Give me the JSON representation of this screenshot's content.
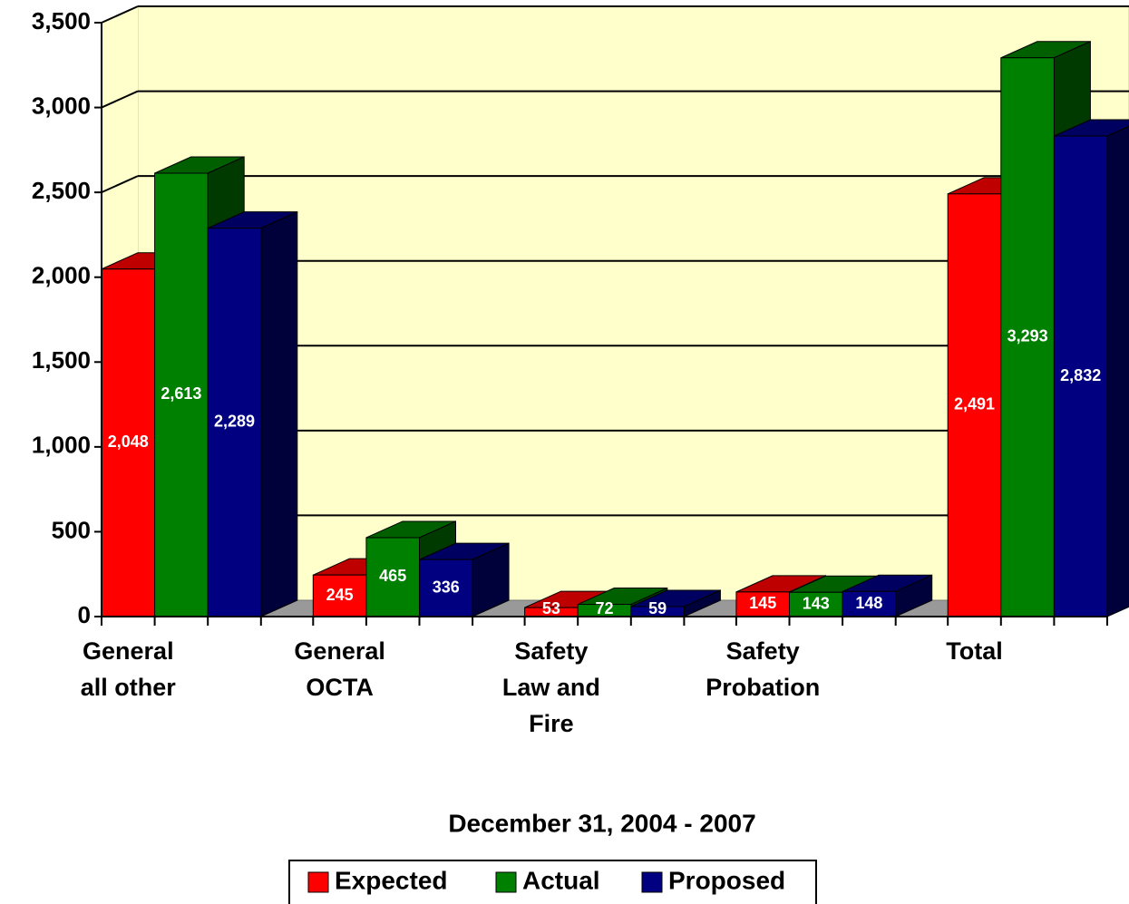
{
  "chart_data": {
    "type": "bar3d",
    "subtitle": "December 31, 2004 - 2007",
    "categories": [
      "General\nall other",
      "General\nOCTA",
      "Safety\nLaw and\nFire",
      "Safety\nProbation",
      "Total"
    ],
    "series": [
      {
        "name": "Expected",
        "color": "#ff0000",
        "values": [
          2048,
          245,
          53,
          145,
          2491
        ],
        "value_labels": [
          "2,048",
          "245",
          "53",
          "145",
          "2,491"
        ]
      },
      {
        "name": "Actual",
        "color": "#008000",
        "values": [
          2613,
          465,
          72,
          143,
          3293
        ],
        "value_labels": [
          "2,613",
          "465",
          "72",
          "143",
          "3,293"
        ]
      },
      {
        "name": "Proposed",
        "color": "#000080",
        "values": [
          2289,
          336,
          59,
          148,
          2832
        ],
        "value_labels": [
          "2,289",
          "336",
          "59",
          "148",
          "2,832"
        ]
      }
    ],
    "ylim": [
      0,
      3500
    ],
    "yticks": [
      0,
      500,
      {
        "value": 1000,
        "label": "1,000"
      },
      {
        "value": 1500,
        "label": "1,500"
      },
      {
        "value": 2000,
        "label": "2,000"
      },
      {
        "value": 2500,
        "label": "2,500"
      },
      {
        "value": 3000,
        "label": "3,000"
      },
      {
        "value": 3500,
        "label": "3,500"
      }
    ],
    "grid": true,
    "legend": "bottom"
  }
}
